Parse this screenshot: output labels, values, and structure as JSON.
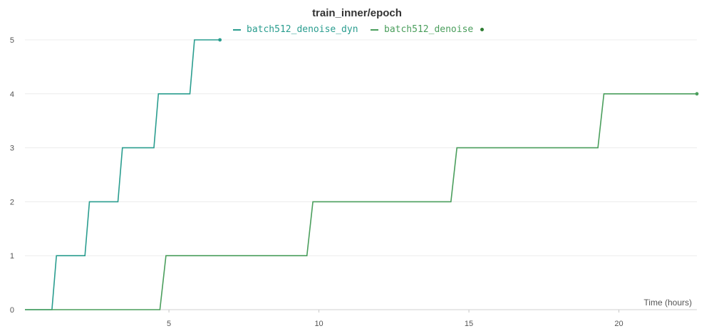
{
  "chart_data": {
    "type": "line",
    "title": "train_inner/epoch",
    "xlabel": "Time (hours)",
    "ylabel": "",
    "xlim": [
      0.2,
      22.6
    ],
    "ylim": [
      0,
      5
    ],
    "x_ticks": [
      5,
      10,
      15,
      20
    ],
    "y_ticks": [
      0,
      1,
      2,
      3,
      4,
      5
    ],
    "grid": true,
    "legend_position": "top-center",
    "series": [
      {
        "name": "batch512_denoise_dyn",
        "color": "#2a9d8f",
        "step_points": [
          [
            0.2,
            0
          ],
          [
            1.1,
            0
          ],
          [
            1.25,
            1
          ],
          [
            2.2,
            1
          ],
          [
            2.35,
            2
          ],
          [
            3.3,
            2
          ],
          [
            3.45,
            3
          ],
          [
            4.5,
            3
          ],
          [
            4.65,
            4
          ],
          [
            5.7,
            4
          ],
          [
            5.85,
            5
          ],
          [
            6.7,
            5
          ]
        ]
      },
      {
        "name": "batch512_denoise",
        "color": "#4a9e5c",
        "step_points": [
          [
            0.2,
            0
          ],
          [
            4.7,
            0
          ],
          [
            4.9,
            1
          ],
          [
            9.6,
            1
          ],
          [
            9.8,
            2
          ],
          [
            14.4,
            2
          ],
          [
            14.6,
            3
          ],
          [
            19.3,
            3
          ],
          [
            19.5,
            4
          ],
          [
            22.6,
            4
          ]
        ]
      }
    ]
  },
  "legend_dot_color": "#2e7d32"
}
